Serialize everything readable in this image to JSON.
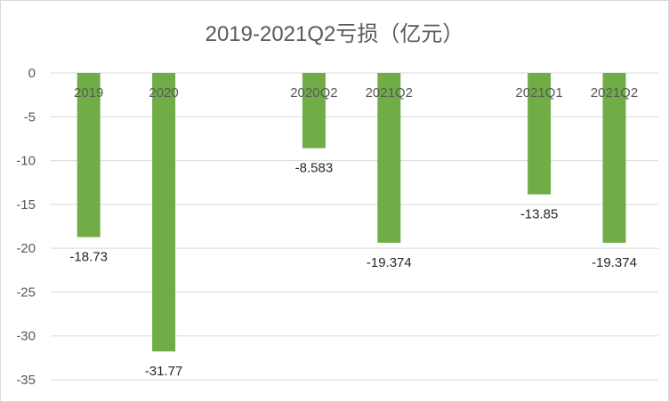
{
  "chart_data": {
    "type": "bar",
    "title": "2019-2021Q2亏损（亿元）",
    "categories": [
      "2019",
      "2020",
      "",
      "2020Q2",
      "2021Q2",
      "",
      "2021Q1",
      "2021Q2"
    ],
    "values": [
      -18.73,
      -31.77,
      null,
      -8.583,
      -19.374,
      null,
      -13.85,
      -19.374
    ],
    "data_labels": [
      "-18.73",
      "-31.77",
      "",
      "-8.583",
      "-19.374",
      "",
      "-13.85",
      "-19.374"
    ],
    "ylim": [
      -35,
      0
    ],
    "yticks": [
      0,
      -5,
      -10,
      -15,
      -20,
      -25,
      -30,
      -35
    ],
    "ytick_labels": [
      "0",
      "-5",
      "-10",
      "-15",
      "-20",
      "-25",
      "-30",
      "-35"
    ],
    "grid": true,
    "xlabel": "",
    "ylabel": "",
    "bar_color": "#70AD47"
  }
}
